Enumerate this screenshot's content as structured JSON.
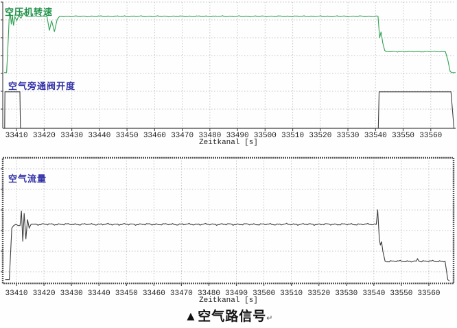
{
  "figure": {
    "caption": "▲空气路信号",
    "caption_mark": "↵"
  },
  "colors": {
    "speed_trace": "#2fa152",
    "speed_label": "#1e9048",
    "blue_label": "#3232a8",
    "dark_trace": "#3c3c3c",
    "grid": "#c4c4c4",
    "axis": "#4a4a4a"
  },
  "chart_data": [
    {
      "type": "line",
      "title": "",
      "xlabel": "Zeitkanal [s]",
      "ylabel": "",
      "xlim": [
        33405,
        33569
      ],
      "ylim": [
        0,
        102
      ],
      "grid": "dotted",
      "legend_position": "inline-upper-left",
      "xticks": [
        33410,
        33420,
        33430,
        33440,
        33450,
        33460,
        33470,
        33480,
        33490,
        33500,
        33510,
        33520,
        33530,
        33540,
        33550,
        33560
      ],
      "series": [
        {
          "name": "空压机转速",
          "color": "#2fa152",
          "noise": 0.5,
          "points": [
            [
              33405.5,
              45
            ],
            [
              33406.4,
              45
            ],
            [
              33406.8,
              62
            ],
            [
              33407.3,
              88
            ],
            [
              33407.7,
              93
            ],
            [
              33408.1,
              84
            ],
            [
              33408.5,
              91
            ],
            [
              33408.9,
              83
            ],
            [
              33409.4,
              90
            ],
            [
              33410.1,
              87
            ],
            [
              33410.8,
              91
            ],
            [
              33411.6,
              89
            ],
            [
              33412.5,
              93
            ],
            [
              33413.5,
              90.5
            ],
            [
              33421.0,
              90.5
            ],
            [
              33421.9,
              79
            ],
            [
              33422.7,
              87
            ],
            [
              33423.7,
              78
            ],
            [
              33424.7,
              88
            ],
            [
              33425.6,
              90.5
            ],
            [
              33540.9,
              90.5
            ],
            [
              33541.5,
              73
            ],
            [
              33542.0,
              78
            ],
            [
              33542.6,
              69
            ],
            [
              33543.3,
              63
            ],
            [
              33543.9,
              62
            ],
            [
              33565.3,
              62
            ],
            [
              33566.2,
              55
            ],
            [
              33567.0,
              46
            ],
            [
              33567.6,
              45
            ],
            [
              33569.0,
              45
            ]
          ]
        },
        {
          "name": "空气旁通阀开度",
          "color": "#3c3c3c",
          "noise": 0,
          "points": [
            [
              33405.5,
              0
            ],
            [
              33405.7,
              0
            ],
            [
              33405.8,
              29.5
            ],
            [
              33411.2,
              29.5
            ],
            [
              33411.4,
              0
            ],
            [
              33541.0,
              0
            ],
            [
              33541.3,
              29.5
            ],
            [
              33567.3,
              29.5
            ],
            [
              33568.4,
              0
            ],
            [
              33569.0,
              0
            ]
          ]
        }
      ]
    },
    {
      "type": "line",
      "title": "",
      "xlabel": "Zeitkanal [s]",
      "ylabel": "",
      "xlim": [
        33405,
        33569
      ],
      "ylim": [
        0,
        102
      ],
      "grid": "dotted",
      "legend_position": "inline-upper-left",
      "xticks": [
        33410,
        33420,
        33430,
        33440,
        33450,
        33460,
        33470,
        33480,
        33490,
        33500,
        33510,
        33520,
        33530,
        33540,
        33550,
        33560
      ],
      "series": [
        {
          "name": "空气流量",
          "color": "#3c3c3c",
          "noise": 0.9,
          "points": [
            [
              33405.9,
              3
            ],
            [
              33407.4,
              3
            ],
            [
              33407.8,
              22
            ],
            [
              33408.3,
              45
            ],
            [
              33409.0,
              47
            ],
            [
              33409.8,
              48
            ],
            [
              33410.6,
              47
            ],
            [
              33411.3,
              47
            ],
            [
              33411.8,
              59
            ],
            [
              33412.3,
              34
            ],
            [
              33412.8,
              57
            ],
            [
              33413.4,
              36
            ],
            [
              33414.0,
              52
            ],
            [
              33414.6,
              45
            ],
            [
              33415.3,
              48
            ],
            [
              33540.9,
              48
            ],
            [
              33541.4,
              60
            ],
            [
              33542.0,
              36
            ],
            [
              33542.4,
              31
            ],
            [
              33542.8,
              34
            ],
            [
              33543.3,
              26
            ],
            [
              33544.1,
              18
            ],
            [
              33555.4,
              18
            ],
            [
              33555.9,
              20
            ],
            [
              33556.4,
              18
            ],
            [
              33565.9,
              18
            ],
            [
              33566.9,
              3
            ],
            [
              33567.5,
              2
            ]
          ]
        }
      ]
    }
  ]
}
